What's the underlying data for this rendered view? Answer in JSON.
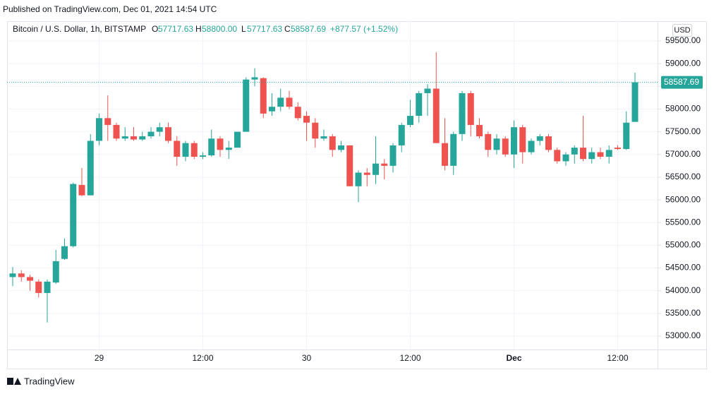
{
  "header": "Published on TradingView.com, Dec 01, 2021 14:54 UTC",
  "footer": "TradingView",
  "legend": {
    "symbol": "Bitcoin / U.S. Dollar, 1h, BITSTAMP",
    "o_label": "O",
    "open": "57717.63",
    "h_label": "H",
    "high": "58800.00",
    "l_label": "L",
    "low": "57717.63",
    "c_label": "C",
    "close": "58587.69",
    "change": "+877.57 (+1.52%)"
  },
  "chart_data": {
    "type": "candlestick",
    "currency": "USD",
    "up_color": "#26a69a",
    "down_color": "#ef5350",
    "grid": true,
    "categories": [
      null,
      null,
      null,
      null,
      null,
      null,
      null,
      null,
      null,
      null,
      "29",
      null,
      null,
      null,
      null,
      null,
      null,
      null,
      null,
      null,
      null,
      null,
      "12:00",
      null,
      null,
      null,
      null,
      null,
      null,
      null,
      null,
      null,
      null,
      null,
      "30",
      null,
      null,
      null,
      null,
      null,
      null,
      null,
      null,
      null,
      null,
      null,
      "12:00",
      null,
      null,
      null,
      null,
      null,
      null,
      null,
      null,
      null,
      null,
      null,
      "Dec",
      null,
      null,
      null,
      null,
      null,
      null,
      null,
      null,
      null,
      null,
      null,
      "12:00",
      null,
      null
    ],
    "open": [
      54300,
      54380,
      54300,
      54200,
      53950,
      54180,
      54700,
      54980,
      56330,
      56100,
      57300,
      57800,
      57650,
      57350,
      57400,
      57330,
      57400,
      57500,
      57600,
      57300,
      56950,
      57250,
      56950,
      56980,
      57350,
      57100,
      57150,
      57500,
      58650,
      58680,
      57950,
      58050,
      58250,
      58050,
      57850,
      57700,
      57350,
      57400,
      57100,
      57200,
      56300,
      56600,
      56550,
      56800,
      56750,
      57200,
      57650,
      57850,
      58350,
      58450,
      57250,
      56750,
      57450,
      58350,
      57650,
      57450,
      57100,
      57350,
      57000,
      57600,
      57050,
      57300,
      57400,
      57100,
      56850,
      57000,
      57150,
      56900,
      57050,
      56950,
      57150,
      57120,
      57717.63
    ],
    "high": [
      54520,
      54450,
      54350,
      54250,
      54250,
      54900,
      55150,
      56380,
      56700,
      57450,
      57900,
      58300,
      57700,
      57600,
      57600,
      57500,
      57600,
      57700,
      57700,
      57400,
      57300,
      57300,
      57050,
      57550,
      57400,
      57300,
      57500,
      58700,
      58900,
      58700,
      58350,
      58450,
      58400,
      58150,
      57950,
      57800,
      57550,
      57450,
      57300,
      57200,
      56650,
      56700,
      57400,
      56900,
      57250,
      57700,
      58200,
      58400,
      58550,
      59250,
      57800,
      57500,
      58400,
      58400,
      57800,
      57500,
      57450,
      57400,
      57750,
      57650,
      57350,
      57450,
      57450,
      57150,
      57050,
      57200,
      57850,
      57150,
      57150,
      57200,
      57200,
      57950,
      58800
    ],
    "low": [
      54100,
      54200,
      54000,
      53850,
      53300,
      54150,
      54680,
      54950,
      56080,
      56100,
      57200,
      57300,
      57300,
      57300,
      57300,
      57300,
      57350,
      57400,
      57250,
      56750,
      56850,
      56900,
      56900,
      56950,
      56950,
      56900,
      57150,
      57500,
      58500,
      57800,
      57850,
      57950,
      58000,
      57750,
      57300,
      57150,
      57300,
      56950,
      57050,
      56300,
      55950,
      56300,
      56350,
      56450,
      56600,
      57050,
      57600,
      57700,
      57850,
      57250,
      56650,
      56550,
      57300,
      57400,
      57350,
      56950,
      57000,
      56950,
      56700,
      56800,
      57000,
      57200,
      57050,
      56800,
      56750,
      56800,
      56850,
      56800,
      56900,
      56800,
      57100,
      57100,
      57717.63
    ],
    "close": [
      54380,
      54300,
      54220,
      53950,
      54200,
      54650,
      54980,
      56350,
      56100,
      57300,
      57800,
      57650,
      57350,
      57400,
      57330,
      57400,
      57500,
      57600,
      57300,
      56950,
      57250,
      56950,
      56980,
      57350,
      57100,
      57150,
      57500,
      58650,
      58700,
      57900,
      58050,
      58250,
      58050,
      57800,
      57700,
      57350,
      57400,
      57100,
      57200,
      56300,
      56600,
      56550,
      56800,
      56750,
      57200,
      57650,
      57850,
      58350,
      58450,
      57250,
      56750,
      57450,
      58350,
      57650,
      57400,
      57100,
      57350,
      57000,
      57600,
      57050,
      57300,
      57400,
      57100,
      56850,
      57000,
      57150,
      56900,
      57050,
      56950,
      57100,
      57120,
      57700,
      58587.69
    ],
    "price_line": {
      "value": 58587.69,
      "label": "58587.69"
    },
    "ylim": [
      52705,
      59935
    ],
    "yticks": [
      {
        "value": 53000,
        "label": "53000.00"
      },
      {
        "value": 53500,
        "label": "53500.00"
      },
      {
        "value": 54000,
        "label": "54000.00"
      },
      {
        "value": 54500,
        "label": "54500.00"
      },
      {
        "value": 55000,
        "label": "55000.00"
      },
      {
        "value": 55500,
        "label": "55500.00"
      },
      {
        "value": 56000,
        "label": "56000.00"
      },
      {
        "value": 56500,
        "label": "56500.00"
      },
      {
        "value": 57000,
        "label": "57000.00"
      },
      {
        "value": 57500,
        "label": "57500.00"
      },
      {
        "value": 58000,
        "label": "58000.00"
      },
      {
        "value": 58500,
        "label": "58500.00"
      },
      {
        "value": 59000,
        "label": "59000.00"
      },
      {
        "value": 59500,
        "label": "59500.00"
      }
    ]
  }
}
